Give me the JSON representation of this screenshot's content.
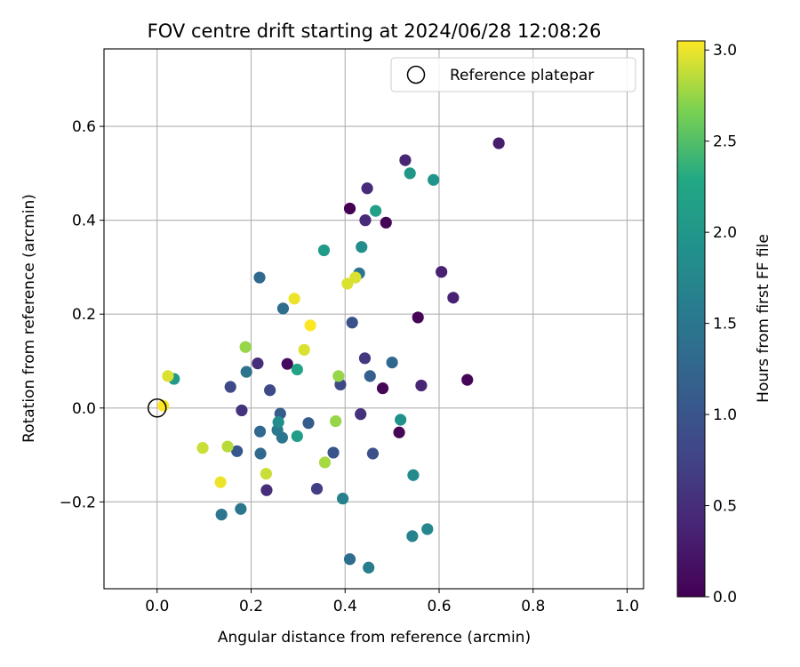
{
  "chart_data": {
    "type": "scatter",
    "title": "FOV centre drift starting at 2024/06/28 12:08:26",
    "xlabel": "Angular distance from reference (arcmin)",
    "ylabel": "Rotation from reference (arcmin)",
    "xlim": [
      -0.113,
      1.035
    ],
    "ylim": [
      -0.385,
      0.765
    ],
    "xticks": [
      0.0,
      0.2,
      0.4,
      0.6,
      0.8,
      1.0
    ],
    "xtick_labels": [
      "0.0",
      "0.2",
      "0.4",
      "0.6",
      "0.8",
      "1.0"
    ],
    "yticks": [
      -0.2,
      0.0,
      0.2,
      0.4,
      0.6
    ],
    "ytick_labels": [
      "−0.2",
      "0.0",
      "0.2",
      "0.4",
      "0.6"
    ],
    "grid": true,
    "legend": {
      "placement": "top-right",
      "entries": [
        {
          "label": "Reference platepar",
          "marker": "open-circle"
        }
      ]
    },
    "reference_point": {
      "x": 0.0,
      "y": 0.0,
      "marker": "open-circle",
      "color": "#000000"
    },
    "colorbar": {
      "label": "Hours from first FF file",
      "colormap": "viridis",
      "range": [
        0.0,
        3.05
      ],
      "ticks": [
        0.0,
        0.5,
        1.0,
        1.5,
        2.0,
        2.5,
        3.0
      ],
      "tick_labels": [
        "0.0",
        "0.5",
        "1.0",
        "1.5",
        "2.0",
        "2.5",
        "3.0"
      ]
    },
    "points": [
      {
        "x": 0.41,
        "y": 0.425,
        "h": 0.0
      },
      {
        "x": 0.487,
        "y": 0.395,
        "h": 0.05
      },
      {
        "x": 0.555,
        "y": 0.193,
        "h": 0.05
      },
      {
        "x": 0.66,
        "y": 0.06,
        "h": 0.05
      },
      {
        "x": 0.48,
        "y": 0.042,
        "h": 0.05
      },
      {
        "x": 0.277,
        "y": 0.094,
        "h": 0.1
      },
      {
        "x": 0.515,
        "y": -0.052,
        "h": 0.05
      },
      {
        "x": 0.727,
        "y": 0.564,
        "h": 0.3
      },
      {
        "x": 0.528,
        "y": 0.528,
        "h": 0.4
      },
      {
        "x": 0.447,
        "y": 0.468,
        "h": 0.45
      },
      {
        "x": 0.443,
        "y": 0.4,
        "h": 0.45
      },
      {
        "x": 0.605,
        "y": 0.29,
        "h": 0.35
      },
      {
        "x": 0.63,
        "y": 0.235,
        "h": 0.35
      },
      {
        "x": 0.562,
        "y": 0.048,
        "h": 0.4
      },
      {
        "x": 0.214,
        "y": 0.095,
        "h": 0.5
      },
      {
        "x": 0.442,
        "y": 0.106,
        "h": 0.6
      },
      {
        "x": 0.433,
        "y": -0.013,
        "h": 0.55
      },
      {
        "x": 0.18,
        "y": -0.005,
        "h": 0.55
      },
      {
        "x": 0.233,
        "y": -0.175,
        "h": 0.5
      },
      {
        "x": 0.34,
        "y": -0.172,
        "h": 0.7
      },
      {
        "x": 0.156,
        "y": 0.045,
        "h": 0.85
      },
      {
        "x": 0.24,
        "y": 0.038,
        "h": 0.85
      },
      {
        "x": 0.39,
        "y": 0.05,
        "h": 0.85
      },
      {
        "x": 0.415,
        "y": 0.182,
        "h": 0.95
      },
      {
        "x": 0.459,
        "y": -0.097,
        "h": 0.95
      },
      {
        "x": 0.375,
        "y": -0.095,
        "h": 1.0
      },
      {
        "x": 0.17,
        "y": -0.092,
        "h": 1.05
      },
      {
        "x": 0.262,
        "y": -0.012,
        "h": 1.1
      },
      {
        "x": 0.322,
        "y": -0.032,
        "h": 1.1
      },
      {
        "x": 0.453,
        "y": 0.068,
        "h": 1.15
      },
      {
        "x": 0.5,
        "y": 0.097,
        "h": 1.3
      },
      {
        "x": 0.219,
        "y": -0.05,
        "h": 1.3
      },
      {
        "x": 0.22,
        "y": -0.097,
        "h": 1.3
      },
      {
        "x": 0.218,
        "y": 0.278,
        "h": 1.3
      },
      {
        "x": 0.268,
        "y": 0.212,
        "h": 1.35
      },
      {
        "x": 0.41,
        "y": -0.322,
        "h": 1.35
      },
      {
        "x": 0.19,
        "y": 0.077,
        "h": 1.45
      },
      {
        "x": 0.266,
        "y": -0.063,
        "h": 1.5
      },
      {
        "x": 0.256,
        "y": -0.047,
        "h": 1.55
      },
      {
        "x": 0.137,
        "y": -0.227,
        "h": 1.5
      },
      {
        "x": 0.178,
        "y": -0.215,
        "h": 1.5
      },
      {
        "x": 0.43,
        "y": 0.287,
        "h": 1.5
      },
      {
        "x": 0.45,
        "y": -0.34,
        "h": 1.6
      },
      {
        "x": 0.395,
        "y": -0.193,
        "h": 1.65
      },
      {
        "x": 0.543,
        "y": -0.273,
        "h": 1.7
      },
      {
        "x": 0.575,
        "y": -0.258,
        "h": 1.75
      },
      {
        "x": 0.545,
        "y": -0.143,
        "h": 1.8
      },
      {
        "x": 0.258,
        "y": -0.03,
        "h": 1.85
      },
      {
        "x": 0.435,
        "y": 0.343,
        "h": 1.85
      },
      {
        "x": 0.518,
        "y": -0.025,
        "h": 1.9
      },
      {
        "x": 0.588,
        "y": 0.486,
        "h": 1.95
      },
      {
        "x": 0.538,
        "y": 0.5,
        "h": 2.0
      },
      {
        "x": 0.036,
        "y": 0.062,
        "h": 2.05
      },
      {
        "x": 0.355,
        "y": 0.336,
        "h": 2.05
      },
      {
        "x": 0.298,
        "y": -0.06,
        "h": 2.1
      },
      {
        "x": 0.465,
        "y": 0.42,
        "h": 2.15
      },
      {
        "x": 0.298,
        "y": 0.082,
        "h": 2.2
      },
      {
        "x": 0.188,
        "y": 0.13,
        "h": 2.75
      },
      {
        "x": 0.386,
        "y": 0.068,
        "h": 2.75
      },
      {
        "x": 0.38,
        "y": -0.028,
        "h": 2.75
      },
      {
        "x": 0.357,
        "y": -0.116,
        "h": 2.8
      },
      {
        "x": 0.15,
        "y": -0.082,
        "h": 2.85
      },
      {
        "x": 0.097,
        "y": -0.085,
        "h": 2.9
      },
      {
        "x": 0.232,
        "y": -0.14,
        "h": 2.9
      },
      {
        "x": 0.313,
        "y": 0.124,
        "h": 2.95
      },
      {
        "x": 0.405,
        "y": 0.265,
        "h": 2.95
      },
      {
        "x": 0.422,
        "y": 0.278,
        "h": 2.95
      },
      {
        "x": 0.023,
        "y": 0.068,
        "h": 2.95
      },
      {
        "x": 0.135,
        "y": -0.158,
        "h": 3.0
      },
      {
        "x": 0.292,
        "y": 0.233,
        "h": 3.0
      },
      {
        "x": 0.326,
        "y": 0.176,
        "h": 3.05
      },
      {
        "x": 0.013,
        "y": 0.005,
        "h": 3.05
      }
    ]
  }
}
